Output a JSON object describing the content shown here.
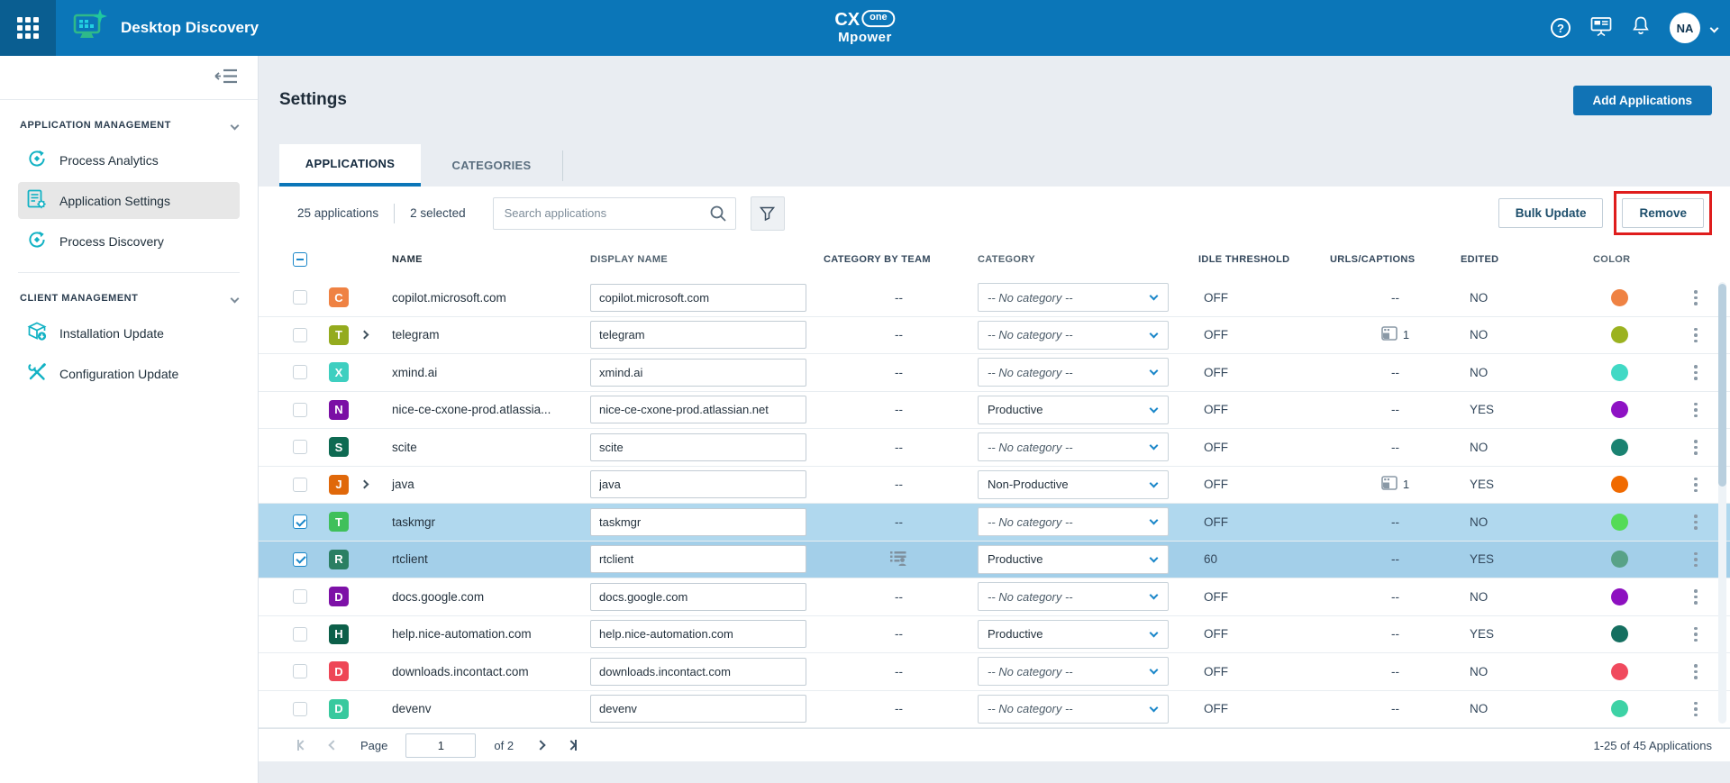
{
  "topbar": {
    "app_title": "Desktop Discovery",
    "logo_cx": "CX",
    "logo_one": "one",
    "logo_mpower": "Mpower",
    "avatar_initials": "NA"
  },
  "sidebar": {
    "sections": [
      {
        "label": "APPLICATION MANAGEMENT",
        "items": [
          {
            "label": "Process Analytics"
          },
          {
            "label": "Application Settings"
          },
          {
            "label": "Process Discovery"
          }
        ]
      },
      {
        "label": "CLIENT MANAGEMENT",
        "items": [
          {
            "label": "Installation Update"
          },
          {
            "label": "Configuration Update"
          }
        ]
      }
    ]
  },
  "page": {
    "title": "Settings",
    "add_button": "Add Applications",
    "tabs": [
      {
        "label": "APPLICATIONS",
        "active": true
      },
      {
        "label": "CATEGORIES",
        "active": false
      }
    ]
  },
  "toolbar": {
    "count_label": "25 applications",
    "selected_label": "2 selected",
    "search_placeholder": "Search applications",
    "bulk_update_label": "Bulk Update",
    "remove_label": "Remove"
  },
  "table": {
    "columns": [
      "NAME",
      "DISPLAY NAME",
      "CATEGORY BY TEAM",
      "CATEGORY",
      "IDLE THRESHOLD",
      "URLS/CAPTIONS",
      "EDITED",
      "COLOR"
    ],
    "rows": [
      {
        "badge_letter": "C",
        "badge_color": "#ef8243",
        "expandable": false,
        "name": "copilot.microsoft.com",
        "display_name": "copilot.microsoft.com",
        "team": "--",
        "team_icon": false,
        "category": "-- No category --",
        "category_placeholder": true,
        "idle": "OFF",
        "urls": "--",
        "urls_icon": false,
        "edited": "NO",
        "dot_color": "#ef8243",
        "selected": false,
        "selected_bg": ""
      },
      {
        "badge_letter": "T",
        "badge_color": "#94ab1e",
        "expandable": true,
        "name": "telegram",
        "display_name": "telegram",
        "team": "--",
        "team_icon": false,
        "category": "-- No category --",
        "category_placeholder": true,
        "idle": "OFF",
        "urls": "1",
        "urls_icon": true,
        "edited": "NO",
        "dot_color": "#9bb220",
        "selected": false,
        "selected_bg": ""
      },
      {
        "badge_letter": "X",
        "badge_color": "#3ecfc0",
        "expandable": false,
        "name": "xmind.ai",
        "display_name": "xmind.ai",
        "team": "--",
        "team_icon": false,
        "category": "-- No category --",
        "category_placeholder": true,
        "idle": "OFF",
        "urls": "--",
        "urls_icon": false,
        "edited": "NO",
        "dot_color": "#41d9c5",
        "selected": false,
        "selected_bg": ""
      },
      {
        "badge_letter": "N",
        "badge_color": "#7b0fa5",
        "expandable": false,
        "name": "nice-ce-cxone-prod.atlassia...",
        "display_name": "nice-ce-cxone-prod.atlassian.net",
        "team": "--",
        "team_icon": false,
        "category": "Productive",
        "category_placeholder": false,
        "idle": "OFF",
        "urls": "--",
        "urls_icon": false,
        "edited": "YES",
        "dot_color": "#8e12c4",
        "selected": false,
        "selected_bg": ""
      },
      {
        "badge_letter": "S",
        "badge_color": "#0e6a52",
        "expandable": false,
        "name": "scite",
        "display_name": "scite",
        "team": "--",
        "team_icon": false,
        "category": "-- No category --",
        "category_placeholder": true,
        "idle": "OFF",
        "urls": "--",
        "urls_icon": false,
        "edited": "NO",
        "dot_color": "#1a8271",
        "selected": false,
        "selected_bg": ""
      },
      {
        "badge_letter": "J",
        "badge_color": "#e0680a",
        "expandable": true,
        "name": "java",
        "display_name": "java",
        "team": "--",
        "team_icon": false,
        "category": "Non-Productive",
        "category_placeholder": false,
        "idle": "OFF",
        "urls": "1",
        "urls_icon": true,
        "edited": "YES",
        "dot_color": "#f06a00",
        "selected": false,
        "selected_bg": ""
      },
      {
        "badge_letter": "T",
        "badge_color": "#3fc05b",
        "expandable": false,
        "name": "taskmgr",
        "display_name": "taskmgr",
        "team": "--",
        "team_icon": false,
        "category": "-- No category --",
        "category_placeholder": true,
        "idle": "OFF",
        "urls": "--",
        "urls_icon": false,
        "edited": "NO",
        "dot_color": "#54db57",
        "selected": true,
        "selected_bg": "#b0d8ee"
      },
      {
        "badge_letter": "R",
        "badge_color": "#2b7f63",
        "expandable": false,
        "name": "rtclient",
        "display_name": "rtclient",
        "team": "",
        "team_icon": true,
        "category": "Productive",
        "category_placeholder": false,
        "idle": "60",
        "urls": "--",
        "urls_icon": false,
        "edited": "YES",
        "dot_color": "#58a287",
        "selected": true,
        "selected_bg": "#a3cfe9"
      },
      {
        "badge_letter": "D",
        "badge_color": "#7d11a7",
        "expandable": false,
        "name": "docs.google.com",
        "display_name": "docs.google.com",
        "team": "--",
        "team_icon": false,
        "category": "-- No category --",
        "category_placeholder": true,
        "idle": "OFF",
        "urls": "--",
        "urls_icon": false,
        "edited": "NO",
        "dot_color": "#8d10c0",
        "selected": false,
        "selected_bg": ""
      },
      {
        "badge_letter": "H",
        "badge_color": "#0c5f49",
        "expandable": false,
        "name": "help.nice-automation.com",
        "display_name": "help.nice-automation.com",
        "team": "--",
        "team_icon": false,
        "category": "Productive",
        "category_placeholder": false,
        "idle": "OFF",
        "urls": "--",
        "urls_icon": false,
        "edited": "YES",
        "dot_color": "#156f60",
        "selected": false,
        "selected_bg": ""
      },
      {
        "badge_letter": "D",
        "badge_color": "#ee4656",
        "expandable": false,
        "name": "downloads.incontact.com",
        "display_name": "downloads.incontact.com",
        "team": "--",
        "team_icon": false,
        "category": "-- No category --",
        "category_placeholder": true,
        "idle": "OFF",
        "urls": "--",
        "urls_icon": false,
        "edited": "NO",
        "dot_color": "#f04a5e",
        "selected": false,
        "selected_bg": ""
      },
      {
        "badge_letter": "D",
        "badge_color": "#38c99e",
        "expandable": false,
        "name": "devenv",
        "display_name": "devenv",
        "team": "--",
        "team_icon": false,
        "category": "-- No category --",
        "category_placeholder": true,
        "idle": "OFF",
        "urls": "--",
        "urls_icon": false,
        "edited": "NO",
        "dot_color": "#3dd2a5",
        "selected": false,
        "selected_bg": ""
      }
    ]
  },
  "pagination": {
    "page_label": "Page",
    "page_value": "1",
    "of_label": "of 2",
    "range_label": "1-25 of 45 Applications"
  }
}
